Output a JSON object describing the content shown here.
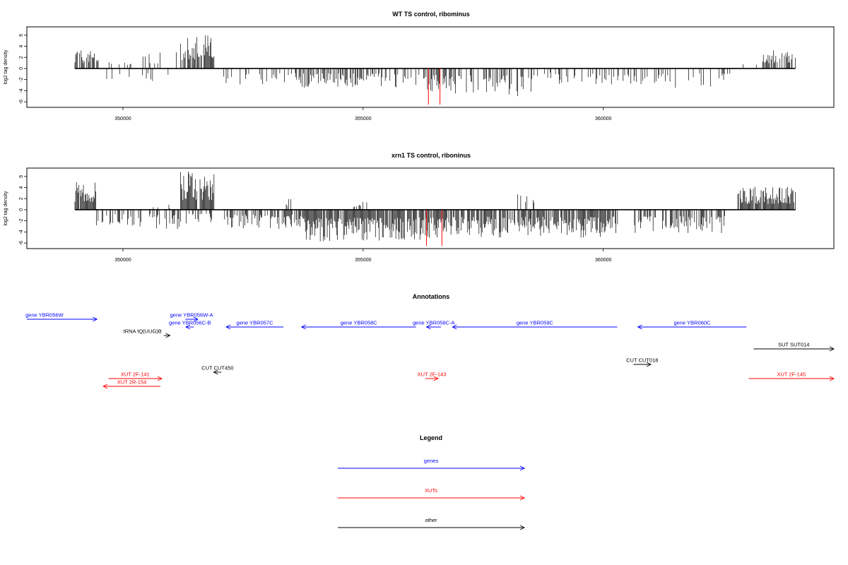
{
  "chart_data": [
    {
      "type": "bar",
      "title": "WT TS control, ribominus",
      "ylabel": "log2 tag density",
      "xlabel": "",
      "xlim": [
        348000,
        364800
      ],
      "ylim": [
        -7,
        7.5
      ],
      "x_ticks": [
        "350000",
        "355000",
        "360000"
      ],
      "y_ticks": [
        "6",
        "4",
        "2",
        "0",
        "-2",
        "-4",
        "-6"
      ],
      "data_start": 349000,
      "data_end": 364000,
      "regions": [
        {
          "start": 349000,
          "end": 349500,
          "strand": "+",
          "max": 3.5,
          "density": 0.6
        },
        {
          "start": 349500,
          "end": 350400,
          "strand": "+",
          "max": 1.2,
          "density": 0.15
        },
        {
          "start": 349500,
          "end": 350800,
          "strand": "-",
          "max": -2,
          "density": 0.08
        },
        {
          "start": 350400,
          "end": 351200,
          "strand": "+",
          "max": 3.2,
          "density": 0.2
        },
        {
          "start": 350600,
          "end": 351100,
          "strand": "-",
          "max": -2.5,
          "density": 0.1
        },
        {
          "start": 351200,
          "end": 351900,
          "strand": "+",
          "max": 6.0,
          "density": 0.75
        },
        {
          "start": 352100,
          "end": 353600,
          "strand": "-",
          "max": -3.0,
          "density": 0.2
        },
        {
          "start": 353600,
          "end": 356000,
          "strand": "-",
          "max": -3.5,
          "density": 0.5
        },
        {
          "start": 356000,
          "end": 356600,
          "strand": "-",
          "max": -4.5,
          "density": 0.6
        },
        {
          "start": 356600,
          "end": 358600,
          "strand": "-",
          "max": -5.0,
          "density": 0.45
        },
        {
          "start": 358600,
          "end": 361000,
          "strand": "-",
          "max": -3.0,
          "density": 0.25
        },
        {
          "start": 361000,
          "end": 362700,
          "strand": "-",
          "max": -3.5,
          "density": 0.2
        },
        {
          "start": 362700,
          "end": 363300,
          "strand": "+",
          "max": 1.0,
          "density": 0.05
        },
        {
          "start": 363300,
          "end": 364000,
          "strand": "+",
          "max": 3.5,
          "density": 0.5
        }
      ],
      "highlight_bars": [
        {
          "x": 356360,
          "y": -6.5
        },
        {
          "x": 356600,
          "y": -6.5
        }
      ],
      "bar_color": "#000000",
      "highlight_color": "#ff0000"
    },
    {
      "type": "bar",
      "title": "xrn1 TS control, riboninus",
      "ylabel": "log2 tag density",
      "xlabel": "",
      "xlim": [
        348000,
        364800
      ],
      "ylim": [
        -7,
        7.5
      ],
      "x_ticks": [
        "350000",
        "355000",
        "360000"
      ],
      "y_ticks": [
        "6",
        "4",
        "2",
        "0",
        "-2",
        "-4",
        "-6"
      ],
      "data_start": 349000,
      "data_end": 364000,
      "regions": [
        {
          "start": 349000,
          "end": 349450,
          "strand": "+",
          "max": 5.5,
          "density": 0.95
        },
        {
          "start": 349450,
          "end": 350600,
          "strand": "-",
          "max": -3.0,
          "density": 0.35
        },
        {
          "start": 350600,
          "end": 351200,
          "strand": "-",
          "max": -3.5,
          "density": 0.45
        },
        {
          "start": 350600,
          "end": 351100,
          "strand": "+",
          "max": 1.0,
          "density": 0.1
        },
        {
          "start": 351200,
          "end": 351900,
          "strand": "+",
          "max": 7.0,
          "density": 0.95
        },
        {
          "start": 351300,
          "end": 351900,
          "strand": "-",
          "max": -2.5,
          "density": 0.3
        },
        {
          "start": 352100,
          "end": 353800,
          "strand": "-",
          "max": -3.5,
          "density": 0.55
        },
        {
          "start": 353400,
          "end": 353500,
          "strand": "+",
          "max": 2.2,
          "density": 0.6
        },
        {
          "start": 353800,
          "end": 355600,
          "strand": "-",
          "max": -5.8,
          "density": 0.9
        },
        {
          "start": 354800,
          "end": 355100,
          "strand": "+",
          "max": 1.5,
          "density": 0.3
        },
        {
          "start": 355600,
          "end": 356700,
          "strand": "-",
          "max": -5.5,
          "density": 0.9
        },
        {
          "start": 356700,
          "end": 358500,
          "strand": "-",
          "max": -5.0,
          "density": 0.8
        },
        {
          "start": 358200,
          "end": 358700,
          "strand": "+",
          "max": 3.0,
          "density": 0.2
        },
        {
          "start": 358500,
          "end": 360300,
          "strand": "-",
          "max": -5.0,
          "density": 0.85
        },
        {
          "start": 360600,
          "end": 362600,
          "strand": "-",
          "max": -4.5,
          "density": 0.45
        },
        {
          "start": 362800,
          "end": 364000,
          "strand": "+",
          "max": 4.2,
          "density": 0.95
        }
      ],
      "highlight_bars": [
        {
          "x": 356320,
          "y": -6.5
        },
        {
          "x": 356640,
          "y": -6.5
        }
      ],
      "bar_color": "#000000",
      "highlight_color": "#ff0000"
    }
  ],
  "annotations": {
    "title": "Annotations",
    "features": [
      {
        "label": "gene YBR056W",
        "start": 348000,
        "end": 349460,
        "strand": "+",
        "row": 0,
        "color": "#0000ff",
        "label_pos": "left"
      },
      {
        "label": "gene YBR056W-A",
        "start": 351300,
        "end": 351560,
        "strand": "+",
        "row": 0,
        "color": "#0000ff"
      },
      {
        "label": "gene YBR056C-B",
        "start": 351310,
        "end": 351480,
        "strand": "-",
        "row": 1,
        "color": "#0000ff"
      },
      {
        "label": "tRNA tQ(UUG)B",
        "start": 350850,
        "end": 350980,
        "strand": "+",
        "row": 2,
        "color": "#000000"
      },
      {
        "label": "gene YBR057C",
        "start": 352150,
        "end": 353340,
        "strand": "-",
        "row": 1,
        "color": "#0000ff"
      },
      {
        "label": "gene YBR058C",
        "start": 353720,
        "end": 356100,
        "strand": "-",
        "row": 1,
        "color": "#0000ff"
      },
      {
        "label": "gene YBR058C-A",
        "start": 356320,
        "end": 356620,
        "strand": "-",
        "row": 1,
        "color": "#0000ff"
      },
      {
        "label": "gene YBR059C",
        "start": 356860,
        "end": 360290,
        "strand": "-",
        "row": 1,
        "color": "#0000ff"
      },
      {
        "label": "gene YBR060C",
        "start": 360720,
        "end": 362980,
        "strand": "-",
        "row": 1,
        "color": "#0000ff"
      },
      {
        "label": "SUT SUT014",
        "start": 363130,
        "end": 364800,
        "strand": "+",
        "row": 3,
        "color": "#000000"
      },
      {
        "label": "CUT CUT450",
        "start": 351890,
        "end": 352050,
        "strand": "-",
        "row": 5,
        "color": "#000000"
      },
      {
        "label": "CUT CUT018",
        "start": 360630,
        "end": 360990,
        "strand": "+",
        "row": 4,
        "color": "#000000"
      },
      {
        "label": "XUT 2F-141",
        "start": 349700,
        "end": 350810,
        "strand": "+",
        "row": 6,
        "color": "#ff0000"
      },
      {
        "label": "XUT 2R-154",
        "start": 349590,
        "end": 350780,
        "strand": "-",
        "row": 7,
        "color": "#ff0000"
      },
      {
        "label": "XUT 2F-143",
        "start": 356300,
        "end": 356560,
        "strand": "+",
        "row": 6,
        "color": "#ff0000"
      },
      {
        "label": "XUT 2F-145",
        "start": 363030,
        "end": 364800,
        "strand": "+",
        "row": 6,
        "color": "#ff0000"
      }
    ]
  },
  "legend": {
    "title": "Legend",
    "items": [
      {
        "label": "genes",
        "color": "#0000ff"
      },
      {
        "label": "XUTs",
        "color": "#ff0000"
      },
      {
        "label": "other",
        "color": "#000000"
      }
    ]
  }
}
